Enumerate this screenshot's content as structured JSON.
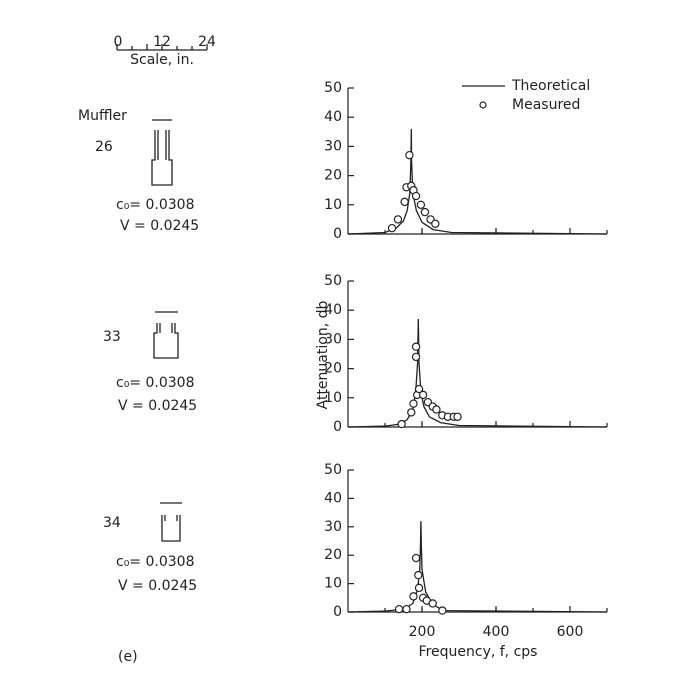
{
  "scale": {
    "label": "Scale, in.",
    "ticks": [
      "0",
      "12",
      "24"
    ]
  },
  "muffler_label": "Muffler",
  "mufflers": [
    {
      "number": "26",
      "c0": "c₀= 0.0308",
      "V": "V = 0.0245"
    },
    {
      "number": "33",
      "c0": "c₀= 0.0308",
      "V": "V = 0.0245"
    },
    {
      "number": "34",
      "c0": "c₀= 0.0308",
      "V": "V = 0.0245"
    }
  ],
  "panel_label": "(e)",
  "y_label": "Attenuation, db",
  "x_label": "Frequency, f, cps",
  "chart_data": [
    {
      "type": "line",
      "xlim": [
        0,
        700
      ],
      "ylim": [
        0,
        50
      ],
      "yticks": [
        0,
        10,
        20,
        30,
        40,
        50
      ],
      "xticks": [
        200,
        400,
        600
      ],
      "xtick_labels": false,
      "legend": "top-right",
      "series": [
        {
          "name": "Theoretical",
          "style": "line",
          "color": "#222",
          "x": [
            0,
            100,
            130,
            150,
            160,
            167,
            170,
            171,
            172,
            175,
            185,
            200,
            230,
            280,
            700
          ],
          "values": [
            0,
            0.5,
            2,
            4.5,
            8,
            14,
            25,
            36,
            25,
            14,
            8,
            4,
            1.5,
            0.5,
            0
          ]
        },
        {
          "name": "Measured",
          "style": "marker",
          "color": "#222",
          "x": [
            119,
            135,
            153,
            158,
            171,
            166,
            177,
            184,
            197,
            208,
            223,
            236
          ],
          "values": [
            2,
            5,
            11,
            16,
            16.5,
            27,
            15,
            13,
            10,
            7.5,
            5,
            3.5
          ]
        }
      ]
    },
    {
      "type": "line",
      "xlim": [
        0,
        700
      ],
      "ylim": [
        0,
        50
      ],
      "yticks": [
        0,
        10,
        20,
        30,
        40,
        50
      ],
      "xticks": [
        200,
        400,
        600
      ],
      "xtick_labels": false,
      "series": [
        {
          "style": "line",
          "color": "#222",
          "x": [
            0,
            100,
            140,
            160,
            175,
            183,
            188,
            190,
            192,
            197,
            205,
            220,
            250,
            300,
            700
          ],
          "values": [
            0,
            0.3,
            1,
            2.5,
            6,
            12,
            22,
            37,
            22,
            12,
            7,
            3.5,
            1.5,
            0.5,
            0
          ]
        },
        {
          "style": "marker",
          "color": "#222",
          "x": [
            145,
            171,
            177,
            187,
            184,
            184,
            192,
            203,
            216,
            229,
            239,
            255,
            270,
            286,
            296
          ],
          "values": [
            1,
            5,
            8,
            11,
            27.5,
            24,
            13,
            11,
            8.5,
            7,
            6,
            4,
            3.5,
            3.5,
            3.5
          ]
        }
      ]
    },
    {
      "type": "line",
      "xlim": [
        0,
        700
      ],
      "ylim": [
        0,
        50
      ],
      "yticks": [
        0,
        10,
        20,
        30,
        40,
        50
      ],
      "xticks": [
        200,
        400,
        600
      ],
      "xtick_labels": true,
      "series": [
        {
          "style": "line",
          "color": "#222",
          "x": [
            0,
            100,
            150,
            175,
            188,
            194,
            196,
            197,
            198,
            200,
            210,
            230,
            260,
            700
          ],
          "values": [
            0,
            0.3,
            1,
            3,
            8,
            15,
            24,
            32,
            24,
            15,
            7,
            2.5,
            0.5,
            0
          ]
        },
        {
          "style": "marker",
          "color": "#222",
          "x": [
            138,
            158,
            177,
            184,
            190,
            192,
            203,
            213,
            229,
            255
          ],
          "values": [
            1,
            1,
            5.5,
            19,
            13,
            8.5,
            5,
            4,
            3,
            0.5
          ]
        }
      ]
    }
  ]
}
